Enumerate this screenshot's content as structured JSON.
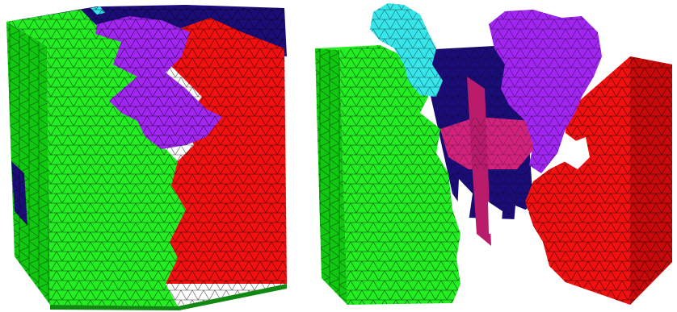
{
  "colors": {
    "background": "#ffffff",
    "green": "#22ee22",
    "green_dark": "#11c811",
    "red": "#f21010",
    "red_dark": "#c80a0a",
    "purple": "#a126f2",
    "purple_dark": "#8218cc",
    "navy": "#1b0d78",
    "navy_dark": "#0a0548",
    "cyan": "#37e6ea",
    "magenta": "#d2237c",
    "mesh_line": "#000000"
  },
  "views": [
    {
      "name": "full-partitioned-cube",
      "label": ""
    },
    {
      "name": "exploded-partitioned-cube",
      "label": ""
    }
  ]
}
